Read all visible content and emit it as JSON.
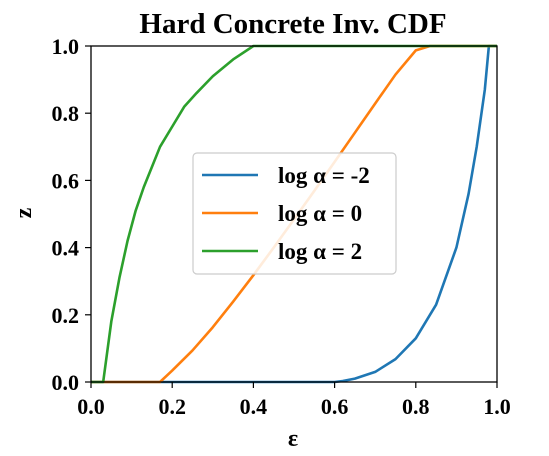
{
  "chart_data": {
    "type": "line",
    "title": "Hard Concrete Inv. CDF",
    "xlabel": "ε",
    "ylabel": "z",
    "xlim": [
      0.0,
      1.0
    ],
    "ylim": [
      0.0,
      1.0
    ],
    "xticks": [
      "0.0",
      "0.2",
      "0.4",
      "0.6",
      "0.8",
      "1.0"
    ],
    "yticks": [
      "0.0",
      "0.2",
      "0.4",
      "0.6",
      "0.8",
      "1.0"
    ],
    "grid": false,
    "legend_position": "center",
    "series": [
      {
        "name": "log α = -2",
        "color": "#1f77b4",
        "x": [
          0.0,
          0.1,
          0.2,
          0.3,
          0.4,
          0.5,
          0.6,
          0.62,
          0.65,
          0.7,
          0.75,
          0.8,
          0.85,
          0.9,
          0.93,
          0.95,
          0.97,
          0.98,
          1.0
        ],
        "y": [
          0.0,
          0.0,
          0.0,
          0.0,
          0.0,
          0.0,
          0.0,
          0.003,
          0.01,
          0.03,
          0.068,
          0.13,
          0.23,
          0.4,
          0.56,
          0.7,
          0.87,
          1.0,
          1.0
        ]
      },
      {
        "name": "log α = 0",
        "color": "#ff7f0e",
        "x": [
          0.0,
          0.1,
          0.17,
          0.2,
          0.25,
          0.3,
          0.35,
          0.4,
          0.45,
          0.5,
          0.55,
          0.6,
          0.65,
          0.7,
          0.75,
          0.8,
          0.835,
          0.9,
          1.0
        ],
        "y": [
          0.0,
          0.0,
          0.0,
          0.034,
          0.094,
          0.163,
          0.239,
          0.318,
          0.4,
          0.484,
          0.569,
          0.655,
          0.742,
          0.829,
          0.915,
          0.987,
          1.0,
          1.0,
          1.0
        ]
      },
      {
        "name": "log α = 2",
        "color": "#2ca02c",
        "x": [
          0.0,
          0.03,
          0.05,
          0.07,
          0.09,
          0.11,
          0.13,
          0.15,
          0.17,
          0.2,
          0.23,
          0.26,
          0.3,
          0.35,
          0.4,
          0.5,
          0.6,
          0.8,
          1.0
        ],
        "y": [
          0.0,
          0.0,
          0.18,
          0.31,
          0.42,
          0.51,
          0.58,
          0.64,
          0.7,
          0.76,
          0.82,
          0.86,
          0.91,
          0.96,
          1.0,
          1.0,
          1.0,
          1.0,
          1.0
        ]
      }
    ]
  }
}
